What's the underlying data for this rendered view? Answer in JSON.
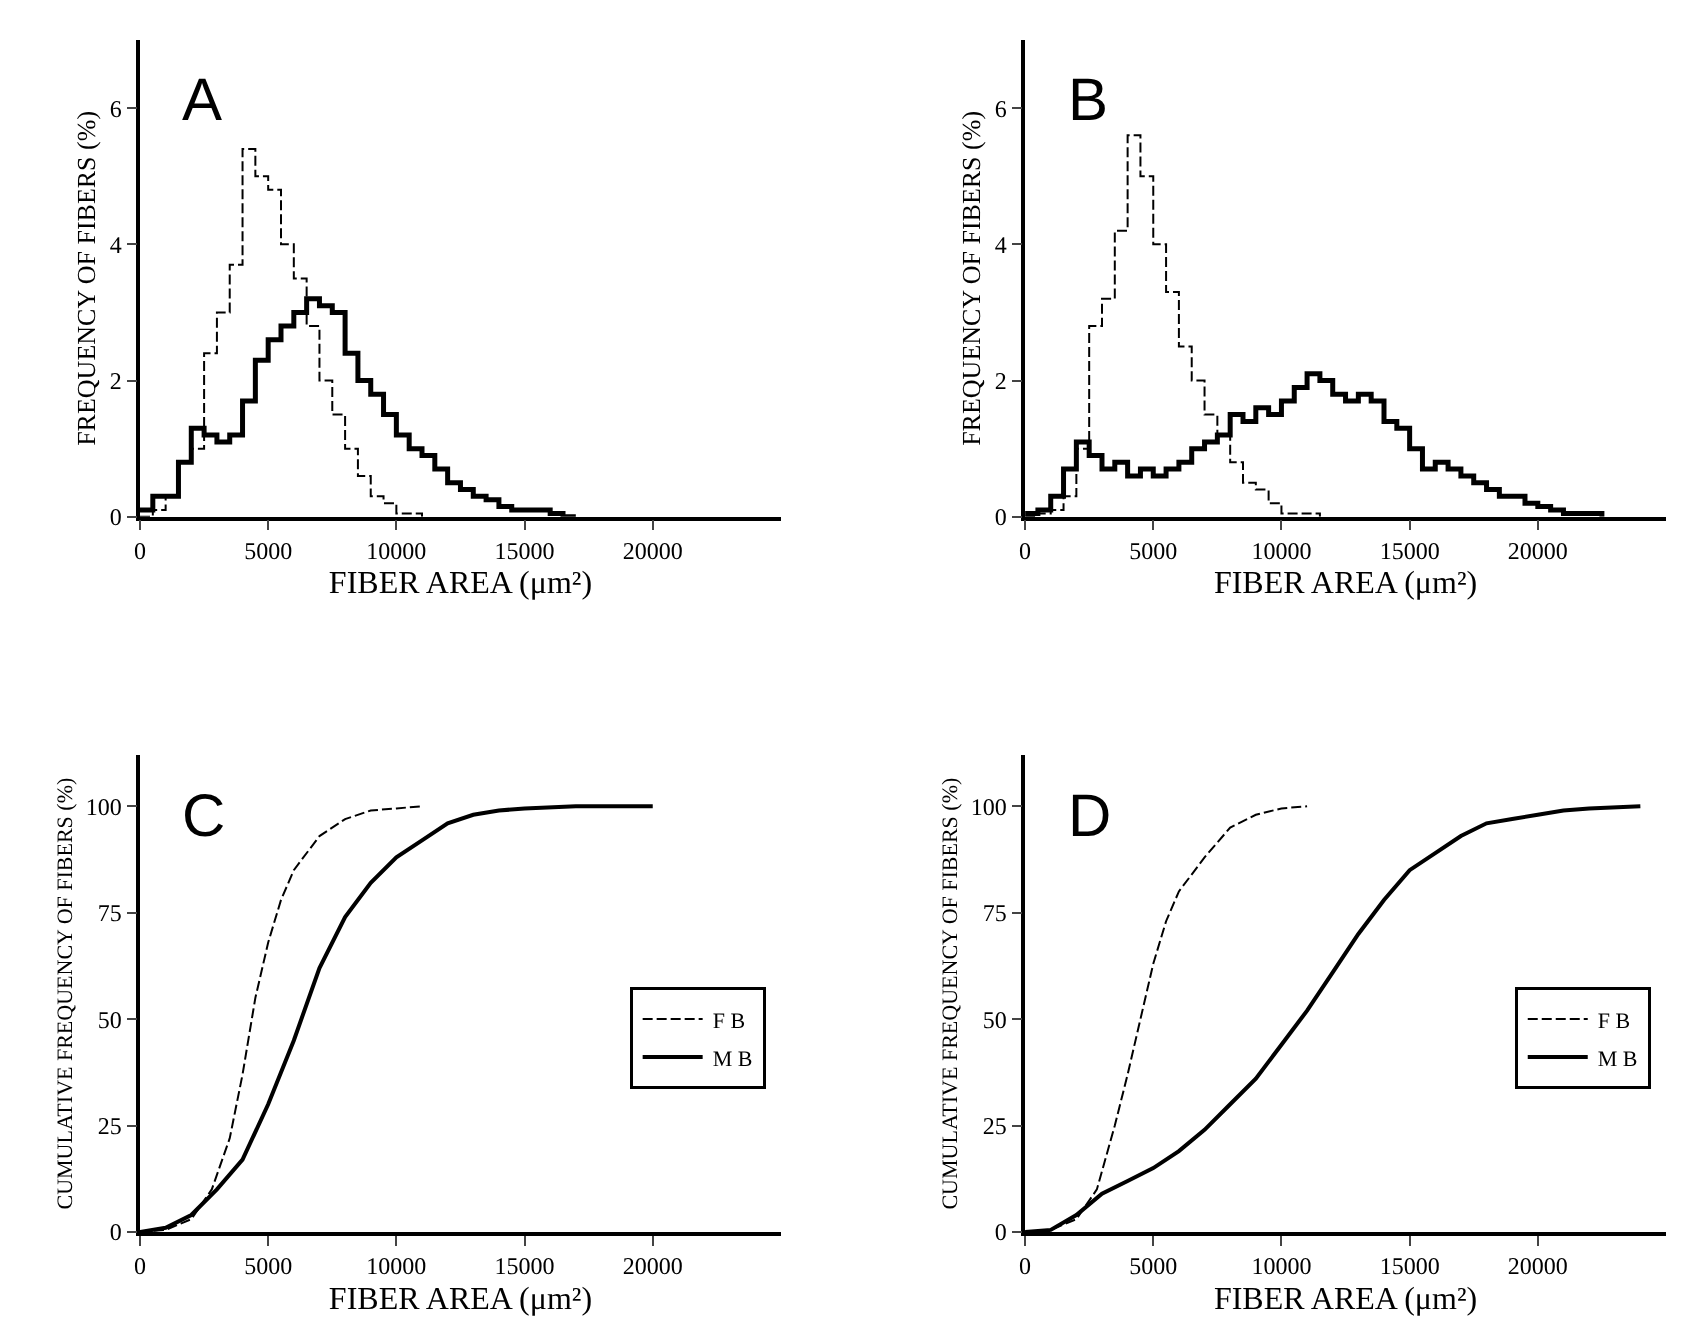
{
  "chart_data": [
    {
      "type": "step",
      "annotations": [
        "A"
      ],
      "xlabel": "FIBER AREA (μm²)",
      "ylabel": "FREQUENCY OF FIBERS (%)",
      "xlim": [
        0,
        25000
      ],
      "xticks": [
        0,
        5000,
        10000,
        15000,
        20000
      ],
      "ylim": [
        0,
        7
      ],
      "yticks": [
        0,
        2,
        4,
        6
      ],
      "x": [
        0,
        500,
        1000,
        1500,
        2000,
        2500,
        3000,
        3500,
        4000,
        4500,
        5000,
        5500,
        6000,
        6500,
        7000,
        7500,
        8000,
        8500,
        9000,
        9500,
        10000,
        10500,
        11000,
        11500,
        12000,
        12500,
        13000,
        13500,
        14000,
        14500,
        15000,
        15500,
        16000,
        16500,
        17000
      ],
      "series": [
        {
          "color": "#000000",
          "line_style": "dashed",
          "values": [
            0,
            0.1,
            0.3,
            0.8,
            1.0,
            2.4,
            3.0,
            3.7,
            5.4,
            5.0,
            4.8,
            4.0,
            3.5,
            2.8,
            2.0,
            1.5,
            1.0,
            0.6,
            0.3,
            0.2,
            0.05,
            0.05,
            0,
            null,
            null,
            null,
            null,
            null,
            null,
            null,
            null,
            null,
            null,
            null,
            null
          ]
        },
        {
          "color": "#000000",
          "line_style": "solid",
          "values": [
            0.1,
            0.3,
            0.3,
            0.8,
            1.3,
            1.2,
            1.1,
            1.2,
            1.7,
            2.3,
            2.6,
            2.8,
            3.0,
            3.2,
            3.1,
            3.0,
            2.4,
            2.0,
            1.8,
            1.5,
            1.2,
            1.0,
            0.9,
            0.7,
            0.5,
            0.4,
            0.3,
            0.25,
            0.15,
            0.1,
            0.1,
            0.1,
            0.05,
            0,
            0
          ]
        }
      ]
    },
    {
      "type": "step",
      "annotations": [
        "B"
      ],
      "xlabel": "FIBER AREA (μm²)",
      "ylabel": "FREQUENCY OF FIBERS (%)",
      "xlim": [
        0,
        25000
      ],
      "xticks": [
        0,
        5000,
        10000,
        15000,
        20000
      ],
      "ylim": [
        0,
        7
      ],
      "yticks": [
        0,
        2,
        4,
        6
      ],
      "x": [
        0,
        500,
        1000,
        1500,
        2000,
        2500,
        3000,
        3500,
        4000,
        4500,
        5000,
        5500,
        6000,
        6500,
        7000,
        7500,
        8000,
        8500,
        9000,
        9500,
        10000,
        10500,
        11000,
        11500,
        12000,
        12500,
        13000,
        13500,
        14000,
        14500,
        15000,
        15500,
        16000,
        16500,
        17000,
        17500,
        18000,
        18500,
        19000,
        19500,
        20000,
        20500,
        21000,
        21500,
        22000,
        22500
      ],
      "series": [
        {
          "color": "#000000",
          "line_style": "dashed",
          "values": [
            0,
            0.05,
            0.1,
            0.3,
            1.0,
            2.8,
            3.2,
            4.2,
            5.6,
            5.0,
            4.0,
            3.3,
            2.5,
            2.0,
            1.5,
            1.2,
            0.8,
            0.5,
            0.4,
            0.2,
            0.05,
            0.05,
            0.05,
            0,
            null,
            null,
            null,
            null,
            null,
            null,
            null,
            null,
            null,
            null,
            null,
            null,
            null,
            null,
            null,
            null,
            null,
            null,
            null,
            null,
            null,
            null
          ]
        },
        {
          "color": "#000000",
          "line_style": "solid",
          "values": [
            0.05,
            0.1,
            0.3,
            0.7,
            1.1,
            0.9,
            0.7,
            0.8,
            0.6,
            0.7,
            0.6,
            0.7,
            0.8,
            1.0,
            1.1,
            1.2,
            1.5,
            1.4,
            1.6,
            1.5,
            1.7,
            1.9,
            2.1,
            2.0,
            1.8,
            1.7,
            1.8,
            1.7,
            1.4,
            1.3,
            1.0,
            0.7,
            0.8,
            0.7,
            0.6,
            0.5,
            0.4,
            0.3,
            0.3,
            0.2,
            0.15,
            0.1,
            0.05,
            0.05,
            0.05,
            0
          ]
        }
      ]
    },
    {
      "type": "line",
      "annotations": [
        "C"
      ],
      "xlabel": "FIBER AREA (μm²)",
      "ylabel": "CUMULATIVE FREQUENCY OF FIBERS (%)",
      "xlim": [
        0,
        25000
      ],
      "xticks": [
        0,
        5000,
        10000,
        15000,
        20000
      ],
      "ylim": [
        0,
        112
      ],
      "yticks": [
        0,
        25,
        50,
        75,
        100
      ],
      "legend": "bottom right",
      "series": [
        {
          "name": "F B",
          "color": "#000000",
          "line_style": "dashed",
          "x": [
            0,
            1000,
            2000,
            2800,
            3500,
            4000,
            4500,
            5000,
            5500,
            6000,
            7000,
            8000,
            9000,
            10000,
            11000
          ],
          "values": [
            0,
            0.5,
            3,
            10,
            22,
            37,
            55,
            68,
            78,
            85,
            93,
            97,
            99,
            99.5,
            100
          ]
        },
        {
          "name": "M B",
          "color": "#000000",
          "line_style": "solid",
          "x": [
            0,
            1000,
            2000,
            3000,
            4000,
            5000,
            6000,
            7000,
            8000,
            9000,
            10000,
            11000,
            12000,
            13000,
            14000,
            15000,
            17000,
            20000
          ],
          "values": [
            0,
            1,
            4,
            10,
            17,
            30,
            45,
            62,
            74,
            82,
            88,
            92,
            96,
            98,
            99,
            99.5,
            100,
            100
          ]
        }
      ]
    },
    {
      "type": "line",
      "annotations": [
        "D"
      ],
      "xlabel": "FIBER AREA (μm²)",
      "ylabel": "CUMULATIVE FREQUENCY OF FIBERS (%)",
      "xlim": [
        0,
        25000
      ],
      "xticks": [
        0,
        5000,
        10000,
        15000,
        20000
      ],
      "ylim": [
        0,
        112
      ],
      "yticks": [
        0,
        25,
        50,
        75,
        100
      ],
      "legend": "bottom right",
      "series": [
        {
          "name": "F B",
          "color": "#000000",
          "line_style": "dashed",
          "x": [
            0,
            1000,
            2000,
            2800,
            3500,
            4000,
            4500,
            5000,
            5500,
            6000,
            7000,
            8000,
            9000,
            10000,
            11000
          ],
          "values": [
            0,
            0.5,
            3,
            10,
            25,
            37,
            50,
            63,
            73,
            80,
            88,
            95,
            98,
            99.5,
            100
          ]
        },
        {
          "name": "M B",
          "color": "#000000",
          "line_style": "solid",
          "x": [
            0,
            1000,
            2000,
            3000,
            4000,
            5000,
            6000,
            7000,
            8000,
            9000,
            10000,
            11000,
            12000,
            13000,
            14000,
            15000,
            16000,
            17000,
            18000,
            19000,
            20000,
            21000,
            22000,
            24000
          ],
          "values": [
            0,
            0.5,
            4,
            9,
            12,
            15,
            19,
            24,
            30,
            36,
            44,
            52,
            61,
            70,
            78,
            85,
            89,
            93,
            96,
            97,
            98,
            99,
            99.5,
            100
          ]
        }
      ]
    }
  ]
}
